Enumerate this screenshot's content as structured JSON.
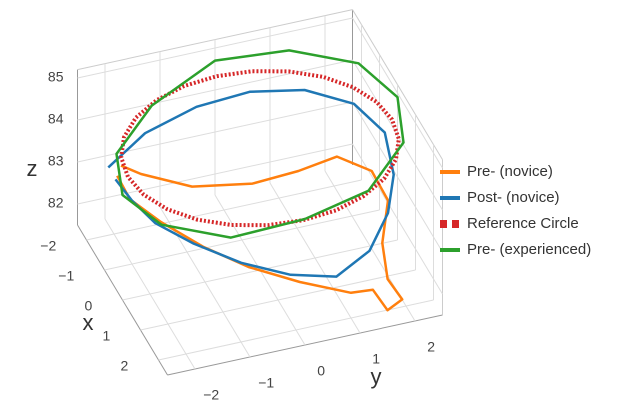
{
  "chart_data": {
    "type": "line3d",
    "xlabel": "x",
    "ylabel": "y",
    "zlabel": "z",
    "xlim": [
      -2.5,
      2.5
    ],
    "ylim": [
      -2.5,
      2.5
    ],
    "zlim": [
      81.5,
      85.2
    ],
    "xticks": [
      {
        "value": -2,
        "label": "−2"
      },
      {
        "value": -1,
        "label": "−1"
      },
      0,
      1,
      2
    ],
    "yticks": [
      {
        "value": -2,
        "label": "−2"
      },
      {
        "value": -1,
        "label": "−1"
      },
      0,
      1,
      2
    ],
    "zticks": [
      82,
      83,
      84,
      85
    ],
    "grid": true,
    "legend": "right",
    "series": [
      {
        "name": "Pre- (novice)",
        "color": "#ff7f0e",
        "x": [
          -1.0,
          -0.5,
          0.2,
          0.5,
          0.3,
          0.0,
          0.4,
          1.0,
          1.6,
          2.2,
          2.4,
          2.5,
          2.3,
          2.0,
          1.6,
          1.2,
          0.8,
          0.3,
          -0.2,
          -0.6
        ],
        "y": [
          -2.2,
          -2.0,
          -1.3,
          -0.3,
          0.6,
          1.4,
          1.9,
          2.0,
          1.7,
          1.6,
          1.8,
          1.5,
          1.3,
          1.0,
          0.2,
          -0.6,
          -1.3,
          -1.9,
          -2.3,
          -2.4
        ],
        "z": [
          83.9,
          84.0,
          84.0,
          84.0,
          83.9,
          83.8,
          83.6,
          83.3,
          82.8,
          82.4,
          82.0,
          81.9,
          82.3,
          82.1,
          82.3,
          82.6,
          83.0,
          83.4,
          83.7,
          84.0
        ]
      },
      {
        "name": "Post- (novice)",
        "color": "#1f77b4",
        "x": [
          -1.4,
          -1.8,
          -2.0,
          -2.1,
          -1.8,
          -1.2,
          -0.4,
          0.4,
          1.0,
          1.5,
          1.8,
          1.7,
          1.4,
          0.9,
          0.3,
          -0.4,
          -1.0
        ],
        "y": [
          -2.3,
          -1.5,
          -0.5,
          0.5,
          1.4,
          2.1,
          2.4,
          2.3,
          2.0,
          1.5,
          0.8,
          0.0,
          -0.8,
          -1.5,
          -2.0,
          -2.2,
          -2.3
        ],
        "z": [
          83.6,
          83.9,
          84.1,
          84.1,
          84.1,
          84.0,
          83.8,
          83.4,
          83.0,
          82.6,
          82.4,
          82.6,
          82.9,
          83.2,
          83.4,
          83.5,
          83.6
        ]
      },
      {
        "name": "Reference Circle",
        "color": "#d62728",
        "dash": true,
        "x": [
          2.4,
          2.32,
          2.08,
          1.7,
          1.2,
          0.62,
          0,
          -0.62,
          -1.2,
          -1.7,
          -2.08,
          -2.32,
          -2.4,
          -2.32,
          -2.08,
          -1.7,
          -1.2,
          -0.62,
          0,
          0.62,
          1.2,
          1.7,
          2.08,
          2.32,
          2.4
        ],
        "y": [
          0,
          0.62,
          1.2,
          1.7,
          2.08,
          2.32,
          2.4,
          2.32,
          2.08,
          1.7,
          1.2,
          0.62,
          0,
          -0.62,
          -1.2,
          -1.7,
          -2.08,
          -2.32,
          -2.4,
          -2.32,
          -2.08,
          -1.7,
          -1.2,
          -0.62,
          0
        ],
        "z": [
          84.4,
          84.4,
          84.4,
          84.4,
          84.4,
          84.4,
          84.4,
          84.4,
          84.4,
          84.4,
          84.4,
          84.4,
          84.4,
          84.4,
          84.4,
          84.4,
          84.4,
          84.4,
          84.4,
          84.4,
          84.4,
          84.4,
          84.4,
          84.4,
          84.4
        ]
      },
      {
        "name": "Pre- (experienced)",
        "color": "#2ca02c",
        "x": [
          2.5,
          2.2,
          1.25,
          0,
          -1.25,
          -2.2,
          -2.5,
          -2.2,
          -1.25,
          0,
          1.25,
          2.2,
          2.5
        ],
        "y": [
          0,
          1.25,
          2.2,
          2.5,
          2.2,
          1.25,
          0,
          -1.25,
          -2.2,
          -2.5,
          -2.2,
          -1.25,
          0
        ],
        "z": [
          84.5,
          84.6,
          84.8,
          84.9,
          84.9,
          84.8,
          84.7,
          84.2,
          84.0,
          84.0,
          84.1,
          84.2,
          84.5
        ]
      }
    ]
  }
}
